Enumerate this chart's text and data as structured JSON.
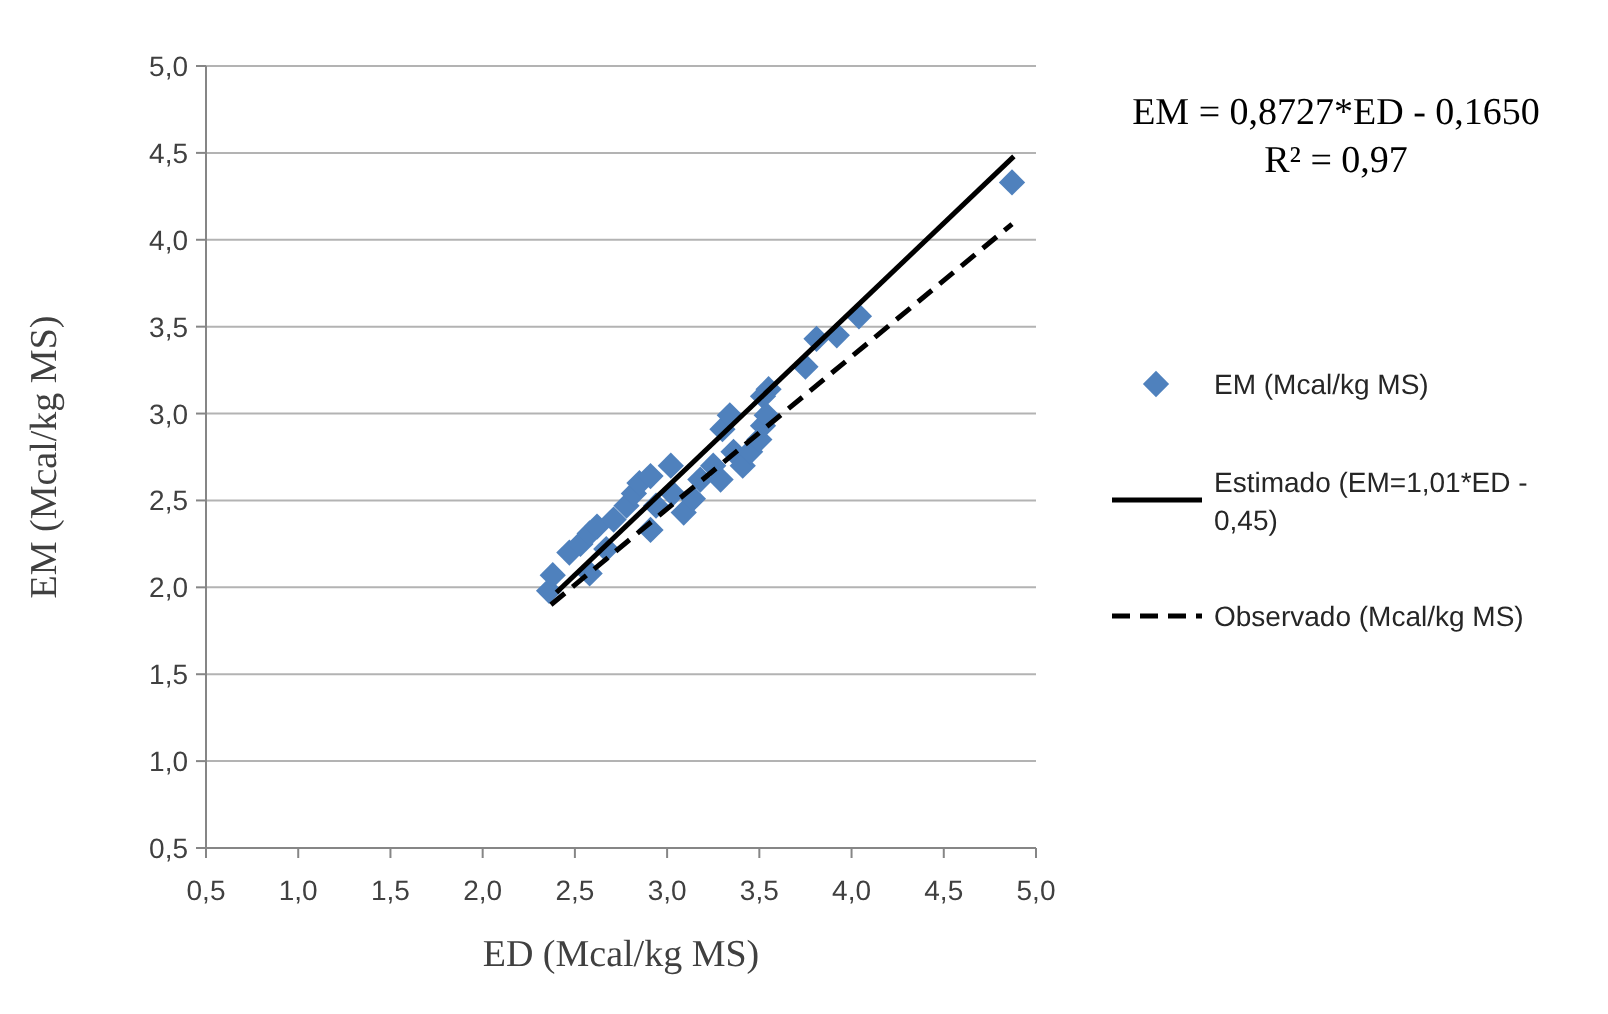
{
  "chart_data": {
    "type": "scatter",
    "xlabel": "ED (Mcal/kg MS)",
    "ylabel": "EM (Mcal/kg MS)",
    "annotations": [
      "EM = 0,8727*ED - 0,1650",
      "R² = 0,97"
    ],
    "xlim": [
      0.5,
      5.0
    ],
    "xticks": [
      {
        "value": 0.5,
        "label": "0,5"
      },
      {
        "value": 1.0,
        "label": "1,0"
      },
      {
        "value": 1.5,
        "label": "1,5"
      },
      {
        "value": 2.0,
        "label": "2,0"
      },
      {
        "value": 2.5,
        "label": "2,5"
      },
      {
        "value": 3.0,
        "label": "3,0"
      },
      {
        "value": 3.5,
        "label": "3,5"
      },
      {
        "value": 4.0,
        "label": "4,0"
      },
      {
        "value": 4.5,
        "label": "4,5"
      },
      {
        "value": 5.0,
        "label": "5,0"
      }
    ],
    "ylim": [
      0.5,
      5.0
    ],
    "yticks": [
      {
        "value": 0.5,
        "label": "0,5"
      },
      {
        "value": 1.0,
        "label": "1,0"
      },
      {
        "value": 1.5,
        "label": "1,5"
      },
      {
        "value": 2.0,
        "label": "2,0"
      },
      {
        "value": 2.5,
        "label": "2,5"
      },
      {
        "value": 3.0,
        "label": "3,0"
      },
      {
        "value": 3.5,
        "label": "3,5"
      },
      {
        "value": 4.0,
        "label": "4,0"
      },
      {
        "value": 4.5,
        "label": "4,5"
      },
      {
        "value": 5.0,
        "label": "5,0"
      }
    ],
    "grid": "y",
    "legend": "right",
    "series": [
      {
        "name": "EM (Mcal/kg MS)",
        "marker": "diamond",
        "color": "#4f81bd",
        "x": [
          2.36,
          2.38,
          2.47,
          2.58,
          2.53,
          2.58,
          2.62,
          2.67,
          2.71,
          2.78,
          2.82,
          2.85,
          2.91,
          2.91,
          2.94,
          3.02,
          3.03,
          3.09,
          3.14,
          3.18,
          3.25,
          3.29,
          3.3,
          3.34,
          3.36,
          3.41,
          3.45,
          3.5,
          3.52,
          3.52,
          3.55,
          3.54,
          3.75,
          3.81,
          3.92,
          4.04,
          4.87
        ],
        "values": [
          1.98,
          2.07,
          2.2,
          2.08,
          2.25,
          2.31,
          2.35,
          2.22,
          2.39,
          2.47,
          2.54,
          2.6,
          2.64,
          2.33,
          2.47,
          2.7,
          2.54,
          2.43,
          2.51,
          2.62,
          2.7,
          2.62,
          2.91,
          2.99,
          2.78,
          2.7,
          2.78,
          2.85,
          2.93,
          3.1,
          3.14,
          2.99,
          3.27,
          3.43,
          3.45,
          3.56,
          4.33
        ]
      },
      {
        "name": "Estimado (EM=1,01*ED - 0,45)",
        "type": "line",
        "marker": "none",
        "color": "#000000",
        "line_style": "solid",
        "x": [
          2.4,
          4.88
        ],
        "values": [
          1.97,
          4.48
        ]
      },
      {
        "name": "Observado (Mcal/kg MS)",
        "type": "line",
        "marker": "none",
        "color": "#000000",
        "line_style": "dashed",
        "x": [
          2.37,
          4.87
        ],
        "values": [
          1.9,
          4.09
        ]
      }
    ]
  }
}
